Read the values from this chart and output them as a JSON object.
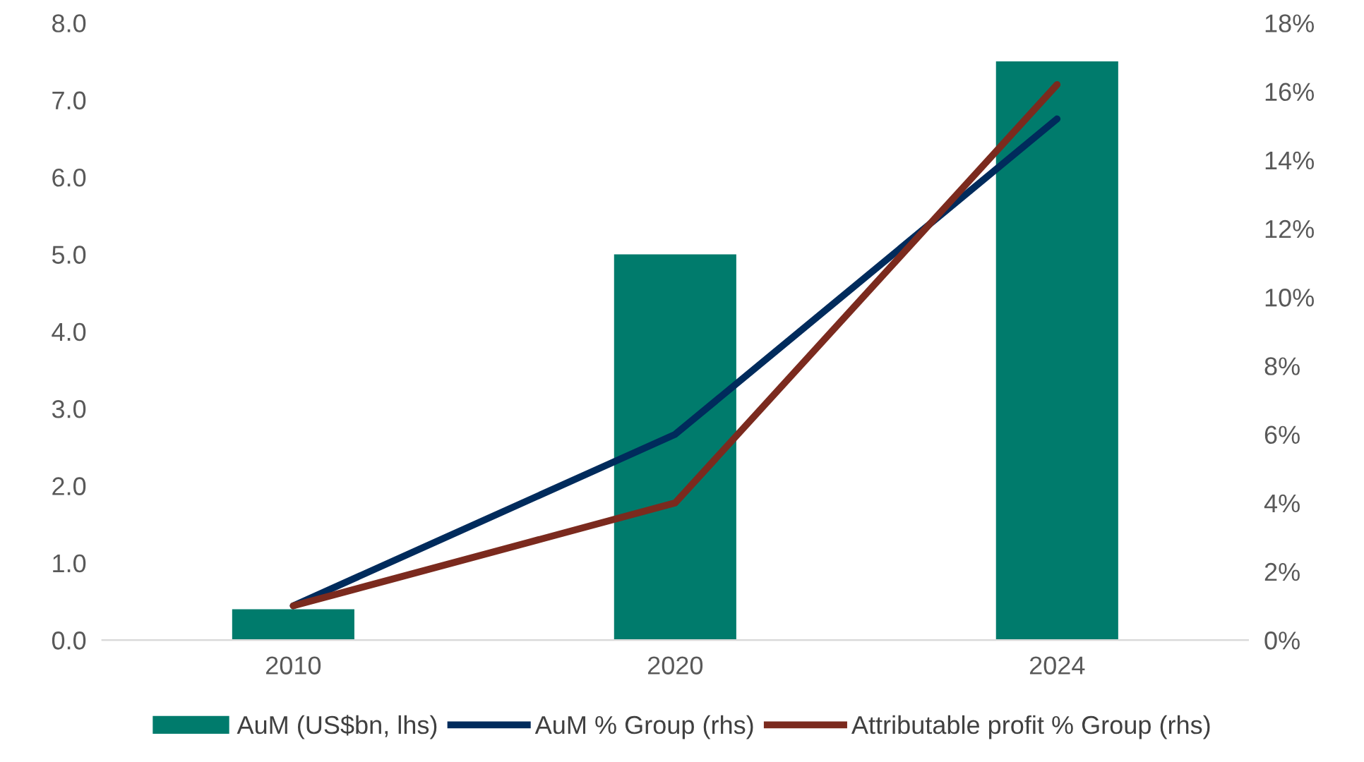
{
  "chart_data": {
    "type": "bar",
    "categories": [
      "2010",
      "2020",
      "2024"
    ],
    "series": [
      {
        "name": "AuM (US$bn, lhs)",
        "color": "#007b6c",
        "values": [
          0.4,
          5.0,
          7.5
        ]
      },
      {
        "name": "AuM % Group (rhs)",
        "type": "line",
        "axis": "y2",
        "color": "#002b5c",
        "values": [
          1.0,
          6.0,
          15.2
        ]
      },
      {
        "name": "Attributable profit % Group (rhs)",
        "type": "line",
        "axis": "y2",
        "color": "#7b2a1e",
        "values": [
          1.0,
          4.0,
          16.2
        ]
      }
    ],
    "ylim": [
      0,
      8
    ],
    "yticks": [
      {
        "value": 0,
        "label": "0.0"
      },
      {
        "value": 1,
        "label": "1.0"
      },
      {
        "value": 2,
        "label": "2.0"
      },
      {
        "value": 3,
        "label": "3.0"
      },
      {
        "value": 4,
        "label": "4.0"
      },
      {
        "value": 5,
        "label": "5.0"
      },
      {
        "value": 6,
        "label": "6.0"
      },
      {
        "value": 7,
        "label": "7.0"
      },
      {
        "value": 8,
        "label": "8.0"
      }
    ],
    "y2lim": [
      0,
      18
    ],
    "y2ticks": [
      {
        "value": 0,
        "label": "0%"
      },
      {
        "value": 2,
        "label": "2%"
      },
      {
        "value": 4,
        "label": "4%"
      },
      {
        "value": 6,
        "label": "6%"
      },
      {
        "value": 8,
        "label": "8%"
      },
      {
        "value": 10,
        "label": "10%"
      },
      {
        "value": 12,
        "label": "12%"
      },
      {
        "value": 14,
        "label": "14%"
      },
      {
        "value": 16,
        "label": "16%"
      },
      {
        "value": 18,
        "label": "18%"
      }
    ],
    "legend": "bottom",
    "grid": false
  }
}
